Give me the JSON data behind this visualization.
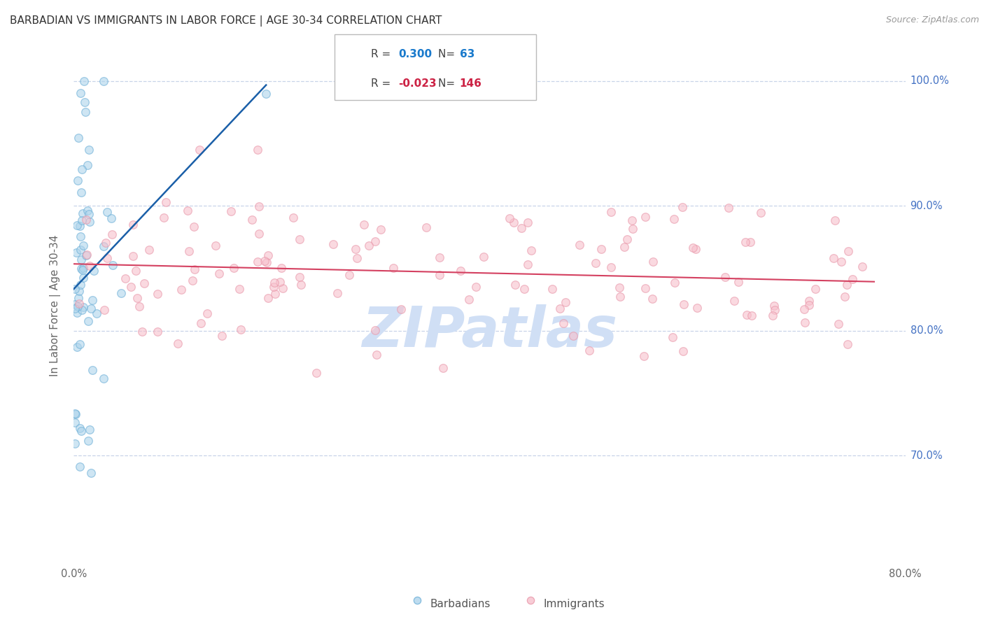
{
  "title": "BARBADIAN VS IMMIGRANTS IN LABOR FORCE | AGE 30-34 CORRELATION CHART",
  "source": "Source: ZipAtlas.com",
  "ylabel": "In Labor Force | Age 30-34",
  "xlim": [
    0.0,
    0.8
  ],
  "ylim": [
    0.615,
    1.025
  ],
  "yticks": [
    0.7,
    0.8,
    0.9,
    1.0
  ],
  "ytick_labels": [
    "70.0%",
    "80.0%",
    "90.0%",
    "100.0%"
  ],
  "xticks": [
    0.0,
    0.1,
    0.2,
    0.3,
    0.4,
    0.5,
    0.6,
    0.7,
    0.8
  ],
  "xtick_labels": [
    "0.0%",
    "",
    "",
    "",
    "",
    "",
    "",
    "",
    "80.0%"
  ],
  "barbadian_color": "#aed4ec",
  "barbadian_edge": "#6aaed6",
  "immigrant_color": "#f7c0cc",
  "immigrant_edge": "#e896a8",
  "trend_blue": "#1a5fa8",
  "trend_pink": "#d44060",
  "watermark": "ZIPatlas",
  "watermark_color": "#d0dff5",
  "background_color": "#ffffff",
  "grid_color": "#c8d4e8",
  "title_color": "#333333",
  "axis_label_color": "#666666",
  "source_color": "#999999",
  "right_tick_color": "#4472c4",
  "legend_R_color_blue": "#1a7acc",
  "legend_R_color_pink": "#cc2244",
  "legend_N_color_blue": "#1a7acc",
  "legend_N_color_pink": "#cc2244",
  "R_blue": 0.3,
  "N_blue": 63,
  "R_pink": -0.023,
  "N_pink": 146,
  "marker_size": 70,
  "marker_alpha": 0.6
}
